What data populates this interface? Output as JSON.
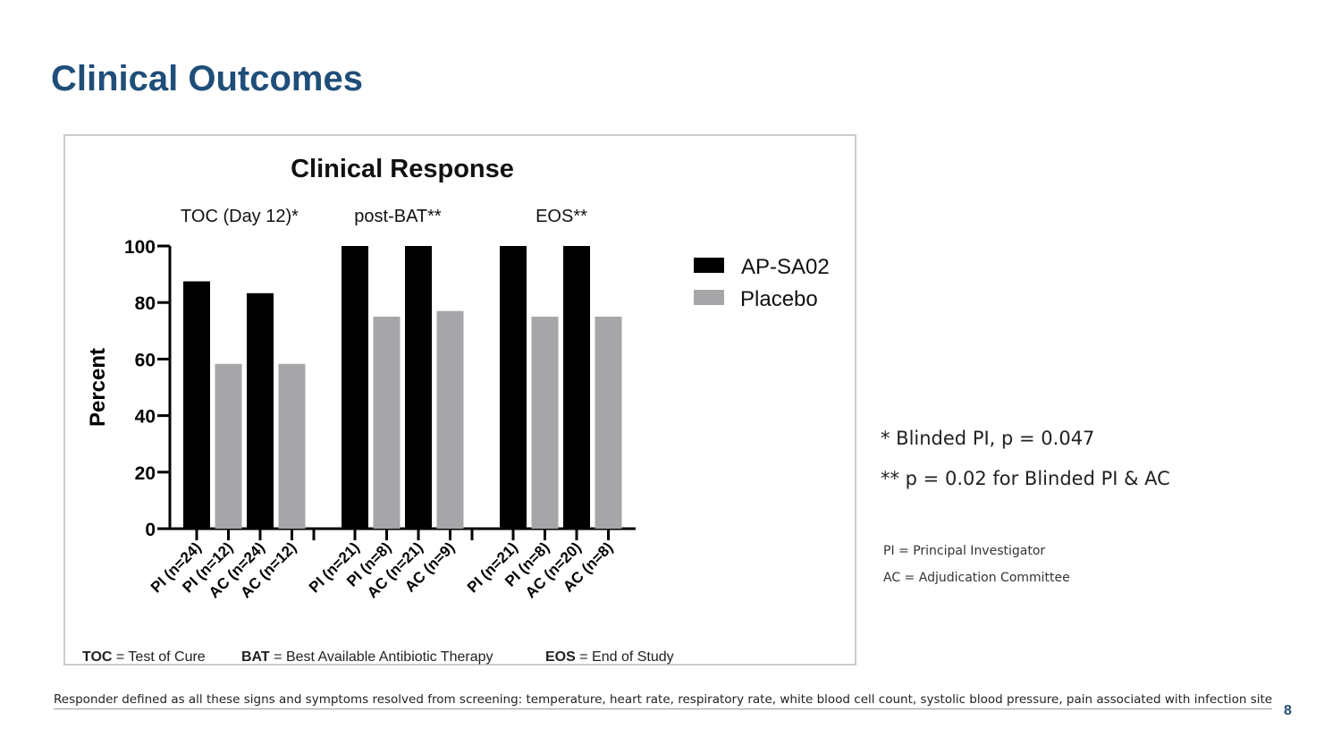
{
  "slide": {
    "title": "Clinical Outcomes",
    "page_number": "8",
    "responder_note": "Responder defined as all these signs and symptoms resolved from screening: temperature, heart rate, respiratory rate, white blood cell count, systolic blood pressure, pain associated with infection site"
  },
  "footnotes": {
    "p1": "* Blinded PI,  p = 0.047",
    "p2": "** p = 0.02 for Blinded PI & AC",
    "pi_def": "PI = Principal Investigator",
    "ac_def": "AC = Adjudication Committee"
  },
  "abbreviations": {
    "toc_key": "TOC",
    "toc_val": " = Test of Cure",
    "bat_key": "BAT",
    "bat_val": " = Best Available Antibiotic Therapy",
    "eos_key": "EOS",
    "eos_val": " = End of Study"
  },
  "colors": {
    "title": "#1f4e79",
    "ap_sa02": "#000000",
    "placebo": "#a6a6a8"
  },
  "chart_data": {
    "type": "bar",
    "title": "Clinical Response",
    "ylabel": "Percent",
    "xlabel": "",
    "ylim": [
      0,
      100
    ],
    "yticks": [
      0,
      20,
      40,
      60,
      80,
      100
    ],
    "legend": [
      "AP-SA02",
      "Placebo"
    ],
    "legend_position": "top-right",
    "groups": [
      {
        "label": "TOC (Day 12)*",
        "bars": [
          {
            "series": "AP-SA02",
            "label": "PI (n=24)",
            "value": 87.5
          },
          {
            "series": "Placebo",
            "label": "PI (n=12)",
            "value": 58.3
          },
          {
            "series": "AP-SA02",
            "label": "AC (n=24)",
            "value": 83.3
          },
          {
            "series": "Placebo",
            "label": "AC (n=12)",
            "value": 58.3
          }
        ]
      },
      {
        "label": "post-BAT**",
        "bars": [
          {
            "series": "AP-SA02",
            "label": "PI (n=21)",
            "value": 100
          },
          {
            "series": "Placebo",
            "label": "PI (n=8)",
            "value": 75
          },
          {
            "series": "AP-SA02",
            "label": "AC (n=21)",
            "value": 100
          },
          {
            "series": "Placebo",
            "label": "AC (n=9)",
            "value": 77
          }
        ]
      },
      {
        "label": "EOS**",
        "bars": [
          {
            "series": "AP-SA02",
            "label": "PI (n=21)",
            "value": 100
          },
          {
            "series": "Placebo",
            "label": "PI (n=8)",
            "value": 75
          },
          {
            "series": "AP-SA02",
            "label": "AC (n=20)",
            "value": 100
          },
          {
            "series": "Placebo",
            "label": "AC (n=8)",
            "value": 75
          }
        ]
      }
    ]
  }
}
